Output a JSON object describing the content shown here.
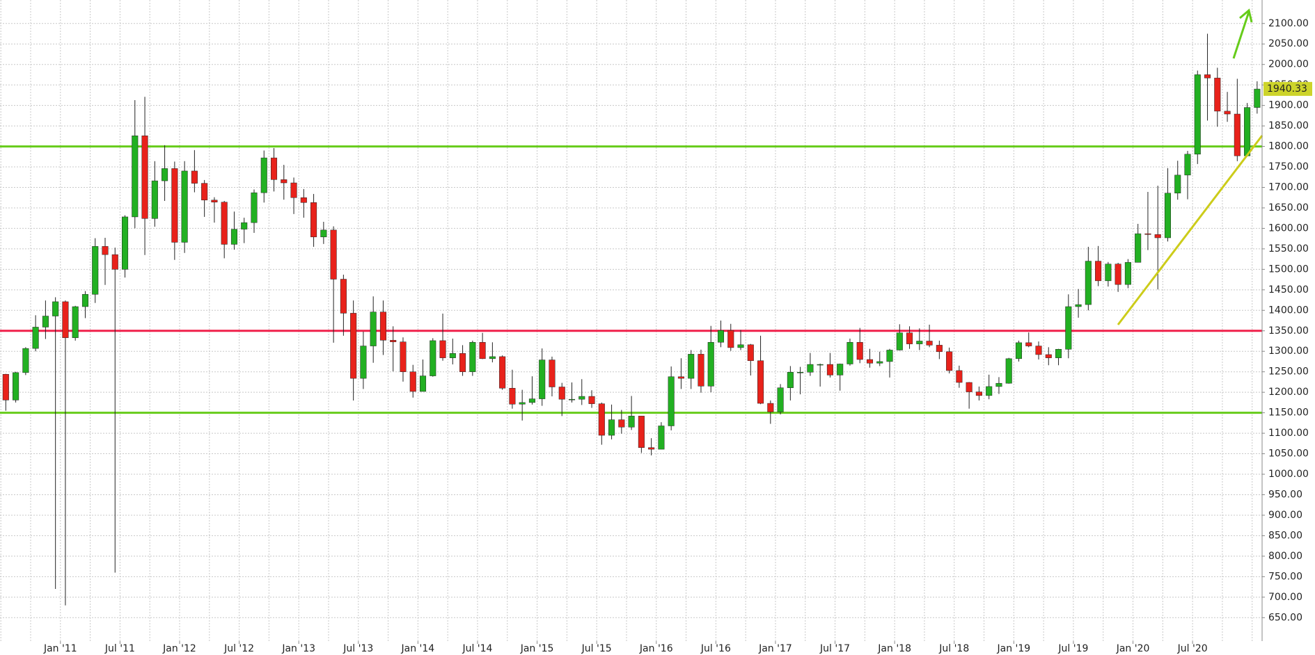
{
  "chart_data": {
    "type": "candlestick",
    "categories": [
      null,
      null,
      null,
      null,
      null,
      null,
      "Jan '11",
      null,
      null,
      null,
      null,
      null,
      "Jul '11",
      null,
      null,
      null,
      null,
      null,
      "Jan '12",
      null,
      null,
      null,
      null,
      null,
      "Jul '12",
      null,
      null,
      null,
      null,
      null,
      "Jan '13",
      null,
      null,
      null,
      null,
      null,
      "Jul '13",
      null,
      null,
      null,
      null,
      null,
      "Jan '14",
      null,
      null,
      null,
      null,
      null,
      "Jul '14",
      null,
      null,
      null,
      null,
      null,
      "Jan '15",
      null,
      null,
      null,
      null,
      null,
      "Jul '15",
      null,
      null,
      null,
      null,
      null,
      "Jan '16",
      null,
      null,
      null,
      null,
      null,
      "Jul '16",
      null,
      null,
      null,
      null,
      null,
      "Jan '17",
      null,
      null,
      null,
      null,
      null,
      "Jul '17",
      null,
      null,
      null,
      null,
      null,
      "Jan '18",
      null,
      null,
      null,
      null,
      null,
      "Jul '18",
      null,
      null,
      null,
      null,
      null,
      "Jan '19",
      null,
      null,
      null,
      null,
      null,
      "Jul '19",
      null,
      null,
      null,
      null,
      null,
      "Jan '20",
      null,
      null,
      null,
      null,
      null,
      "Jul '20",
      null,
      null,
      null,
      null,
      null,
      null
    ],
    "open": [
      1244,
      1181,
      1248,
      1307,
      1359,
      1386,
      1421,
      1333,
      1409,
      1439,
      1556,
      1536,
      1500,
      1628,
      1826,
      1624,
      1716,
      1746,
      1566,
      1740,
      1710,
      1669,
      1664,
      1561,
      1598,
      1614,
      1687,
      1772,
      1719,
      1711,
      1675,
      1663,
      1579,
      1596,
      1476,
      1393,
      1234,
      1313,
      1396,
      1327,
      1323,
      1250,
      1202,
      1240,
      1326,
      1284,
      1295,
      1250,
      1322,
      1282,
      1287,
      1210,
      1171,
      1175,
      1184,
      1279,
      1213,
      1183,
      1183,
      1190,
      1172,
      1095,
      1133,
      1115,
      1142,
      1065,
      1061,
      1118,
      1238,
      1234,
      1293,
      1215,
      1322,
      1351,
      1309,
      1316,
      1277,
      1173,
      1152,
      1211,
      1249,
      1249,
      1268,
      1268,
      1242,
      1269,
      1322,
      1280,
      1271,
      1275,
      1303,
      1345,
      1318,
      1325,
      1315,
      1299,
      1253,
      1224,
      1201,
      1192,
      1214,
      1222,
      1282,
      1321,
      1313,
      1292,
      1284,
      1305,
      1409,
      1414,
      1520,
      1472,
      1513,
      1463,
      1517,
      1587,
      1585,
      1577,
      1686,
      1730,
      1781,
      1975,
      1967,
      1886,
      1879,
      1777,
      1895
    ],
    "high": [
      1245,
      1250,
      1310,
      1388,
      1424,
      1432,
      1424,
      1411,
      1447,
      1576,
      1577,
      1553,
      1632,
      1913,
      1921,
      1764,
      1803,
      1763,
      1764,
      1791,
      1718,
      1676,
      1667,
      1641,
      1626,
      1695,
      1790,
      1796,
      1755,
      1724,
      1696,
      1684,
      1616,
      1605,
      1487,
      1424,
      1348,
      1434,
      1424,
      1361,
      1334,
      1267,
      1280,
      1332,
      1392,
      1331,
      1315,
      1326,
      1345,
      1322,
      1290,
      1255,
      1206,
      1239,
      1307,
      1287,
      1223,
      1224,
      1232,
      1205,
      1175,
      1170,
      1157,
      1191,
      1142,
      1088,
      1127,
      1263,
      1283,
      1303,
      1304,
      1362,
      1375,
      1367,
      1352,
      1318,
      1338,
      1180,
      1220,
      1264,
      1262,
      1296,
      1270,
      1296,
      1270,
      1331,
      1357,
      1306,
      1299,
      1306,
      1366,
      1361,
      1356,
      1365,
      1326,
      1309,
      1265,
      1225,
      1214,
      1243,
      1237,
      1284,
      1326,
      1346,
      1324,
      1310,
      1306,
      1439,
      1452,
      1555,
      1557,
      1518,
      1516,
      1525,
      1611,
      1689,
      1704,
      1747,
      1765,
      1789,
      1985,
      2075,
      1992,
      1933,
      1965,
      1906,
      1959
    ],
    "low": [
      1155,
      1175,
      1242,
      1300,
      1330,
      720,
      680,
      1326,
      1381,
      1418,
      1462,
      760,
      1480,
      1600,
      1535,
      1604,
      1667,
      1523,
      1540,
      1688,
      1628,
      1614,
      1527,
      1548,
      1564,
      1589,
      1663,
      1690,
      1670,
      1635,
      1626,
      1555,
      1562,
      1321,
      1338,
      1180,
      1208,
      1272,
      1291,
      1251,
      1226,
      1187,
      1202,
      1238,
      1277,
      1268,
      1240,
      1240,
      1281,
      1273,
      1206,
      1160,
      1131,
      1170,
      1167,
      1190,
      1142,
      1175,
      1169,
      1162,
      1072,
      1085,
      1099,
      1108,
      1052,
      1046,
      1061,
      1107,
      1208,
      1208,
      1199,
      1200,
      1310,
      1301,
      1303,
      1241,
      1171,
      1123,
      1146,
      1180,
      1195,
      1240,
      1214,
      1236,
      1204,
      1265,
      1271,
      1260,
      1264,
      1236,
      1302,
      1306,
      1303,
      1310,
      1281,
      1246,
      1211,
      1160,
      1180,
      1183,
      1196,
      1221,
      1275,
      1310,
      1280,
      1266,
      1266,
      1283,
      1382,
      1400,
      1459,
      1458,
      1445,
      1454,
      1517,
      1547,
      1451,
      1568,
      1670,
      1671,
      1757,
      1863,
      1848,
      1860,
      1764,
      1775,
      1880
    ],
    "close": [
      1181,
      1248,
      1307,
      1359,
      1386,
      1421,
      1333,
      1409,
      1439,
      1556,
      1536,
      1500,
      1628,
      1826,
      1624,
      1716,
      1746,
      1566,
      1740,
      1710,
      1669,
      1664,
      1561,
      1598,
      1614,
      1687,
      1772,
      1719,
      1711,
      1675,
      1663,
      1579,
      1596,
      1476,
      1393,
      1234,
      1313,
      1396,
      1327,
      1323,
      1250,
      1202,
      1240,
      1326,
      1284,
      1295,
      1250,
      1322,
      1282,
      1287,
      1210,
      1171,
      1175,
      1184,
      1279,
      1213,
      1183,
      1183,
      1190,
      1172,
      1095,
      1133,
      1115,
      1142,
      1065,
      1061,
      1118,
      1238,
      1234,
      1293,
      1215,
      1322,
      1351,
      1309,
      1316,
      1277,
      1173,
      1152,
      1211,
      1249,
      1249,
      1268,
      1268,
      1242,
      1269,
      1322,
      1280,
      1271,
      1275,
      1303,
      1345,
      1318,
      1325,
      1315,
      1299,
      1253,
      1224,
      1201,
      1192,
      1214,
      1222,
      1282,
      1321,
      1313,
      1292,
      1284,
      1305,
      1409,
      1414,
      1520,
      1472,
      1513,
      1463,
      1517,
      1587,
      1585,
      1577,
      1686,
      1730,
      1781,
      1975,
      1967,
      1886,
      1879,
      1777,
      1895,
      1940
    ],
    "up_color": "#22b022",
    "down_color": "#e8221b",
    "ylim": [
      592.8,
      2157.3
    ],
    "yticks": [
      {
        "value": 650,
        "label": "650.00"
      },
      {
        "value": 700,
        "label": "700.00"
      },
      {
        "value": 750,
        "label": "750.00"
      },
      {
        "value": 800,
        "label": "800.00"
      },
      {
        "value": 850,
        "label": "850.00"
      },
      {
        "value": 900,
        "label": "900.00"
      },
      {
        "value": 950,
        "label": "950.00"
      },
      {
        "value": 1000,
        "label": "1000.00"
      },
      {
        "value": 1050,
        "label": "1050.00"
      },
      {
        "value": 1100,
        "label": "1100.00"
      },
      {
        "value": 1150,
        "label": "1150.00"
      },
      {
        "value": 1200,
        "label": "1200.00"
      },
      {
        "value": 1250,
        "label": "1250.00"
      },
      {
        "value": 1300,
        "label": "1300.00"
      },
      {
        "value": 1350,
        "label": "1350.00"
      },
      {
        "value": 1400,
        "label": "1400.00"
      },
      {
        "value": 1450,
        "label": "1450.00"
      },
      {
        "value": 1500,
        "label": "1500.00"
      },
      {
        "value": 1550,
        "label": "1550.00"
      },
      {
        "value": 1600,
        "label": "1600.00"
      },
      {
        "value": 1650,
        "label": "1650.00"
      },
      {
        "value": 1700,
        "label": "1700.00"
      },
      {
        "value": 1750,
        "label": "1750.00"
      },
      {
        "value": 1800,
        "label": "1800.00"
      },
      {
        "value": 1850,
        "label": "1850.00"
      },
      {
        "value": 1900,
        "label": "1900.00"
      },
      {
        "value": 1950,
        "label": "1950.00"
      },
      {
        "value": 2000,
        "label": "2000.00"
      },
      {
        "value": 2050,
        "label": "2050.00"
      },
      {
        "value": 2100,
        "label": "2100.00"
      }
    ],
    "grid": true,
    "last_price": 1940.33,
    "hlines": [
      {
        "value": 1800,
        "color": "#66cc1a"
      },
      {
        "value": 1350,
        "color": "#f0204a"
      },
      {
        "value": 1150,
        "color": "#66cc1a"
      }
    ]
  }
}
